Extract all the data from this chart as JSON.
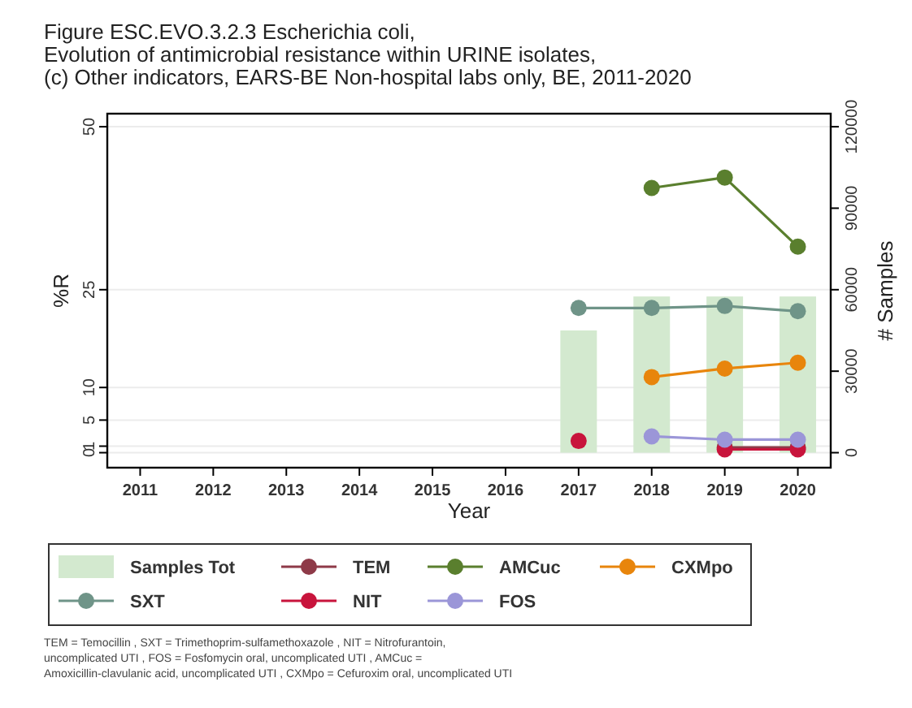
{
  "chart_data": {
    "type": "line",
    "title": "Figure ESC.EVO.3.2.3 Escherichia coli,",
    "subtitle": "Evolution of antimicrobial resistance within URINE isolates,\n(c) Other indicators, EARS-BE Non-hospital labs only, BE, 2011-2020",
    "xlabel": "Year",
    "ylabel": "%R",
    "y2label": "# Samples",
    "categories": [
      "2011",
      "2012",
      "2013",
      "2014",
      "2015",
      "2016",
      "2017",
      "2018",
      "2019",
      "2020"
    ],
    "series": [
      {
        "name": "Samples Tot",
        "type": "bar",
        "axis": "y2",
        "color": "#d3e9cf",
        "values": [
          null,
          null,
          null,
          null,
          null,
          null,
          45000,
          57500,
          57500,
          57500
        ]
      },
      {
        "name": "TEM",
        "color": "#8e3a48",
        "values": [
          null,
          null,
          null,
          null,
          null,
          null,
          null,
          null,
          0.8,
          0.8
        ]
      },
      {
        "name": "AMCuc",
        "color": "#5a7f2e",
        "values": [
          null,
          null,
          null,
          null,
          null,
          null,
          null,
          40.6,
          42.2,
          31.6
        ]
      },
      {
        "name": "CXMpo",
        "color": "#e8850c",
        "values": [
          null,
          null,
          null,
          null,
          null,
          null,
          null,
          11.6,
          12.9,
          13.8
        ]
      },
      {
        "name": "SXT",
        "color": "#6f9488",
        "values": [
          null,
          null,
          null,
          null,
          null,
          null,
          22.2,
          22.2,
          22.5,
          21.7
        ]
      },
      {
        "name": "NIT",
        "color": "#c8143c",
        "values": [
          null,
          null,
          null,
          null,
          null,
          null,
          1.8,
          null,
          0.5,
          0.5
        ]
      },
      {
        "name": "FOS",
        "color": "#9b96d8",
        "values": [
          null,
          null,
          null,
          null,
          null,
          null,
          null,
          2.5,
          2.0,
          2.0
        ]
      }
    ],
    "ylim": [
      -2.3,
      52
    ],
    "yticks": [
      0,
      1,
      5,
      10,
      25,
      50
    ],
    "y2lim": [
      -5520,
      124800
    ],
    "y2ticks": [
      0,
      30000,
      60000,
      90000,
      120000
    ],
    "grid": "y",
    "legend": "bottom",
    "marker": "circle",
    "annotations": [
      "TEM = Temocillin , SXT = Trimethoprim-sulfamethoxazole , NIT = Nitrofurantoin,\nuncomplicated UTI , FOS = Fosfomycin oral, uncomplicated UTI , AMCuc =\nAmoxicillin-clavulanic acid, uncomplicated UTI , CXMpo = Cefuroxim oral, uncomplicated UTI"
    ]
  }
}
